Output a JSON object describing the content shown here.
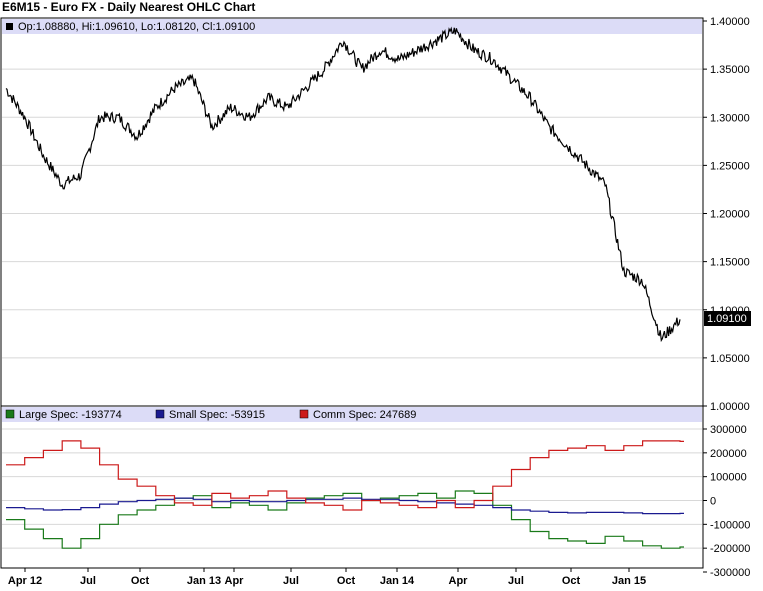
{
  "title": "E6M15 - Euro FX - Daily Nearest OHLC Chart",
  "price_panel": {
    "ohlc_label": "Op:1.08880, Hi:1.09610, Lo:1.08120, Cl:1.09100",
    "last_value_label": "1.09100",
    "ticks": [
      "1.40000",
      "1.35000",
      "1.30000",
      "1.25000",
      "1.20000",
      "1.15000",
      "1.10000",
      "1.05000",
      "1.00000"
    ]
  },
  "cot_panel": {
    "legend": [
      {
        "label": "Large Spec: -193774",
        "color": "#1a7a1a"
      },
      {
        "label": "Small Spec: -53915",
        "color": "#1a1a90"
      },
      {
        "label": "Comm Spec: 247689",
        "color": "#cc1a1a"
      }
    ],
    "ticks": [
      "300000",
      "200000",
      "100000",
      "0",
      "-100000",
      "-200000",
      "-300000"
    ]
  },
  "x_labels": [
    "Apr 12",
    "Jul",
    "Oct",
    "Jan 13",
    "Apr",
    "Jul",
    "Oct",
    "Jan 14",
    "Apr",
    "Jul",
    "Oct",
    "Jan 15"
  ],
  "colors": {
    "band": "#dcdcf7",
    "grid": "#d8d8d8",
    "price": "#000000",
    "last_box": "#000000"
  },
  "chart_data": [
    {
      "type": "line",
      "title": "E6M15 - Euro FX - Daily Nearest OHLC Chart",
      "x": [
        "2012-04",
        "2012-05",
        "2012-06",
        "2012-07",
        "2012-08",
        "2012-09",
        "2012-10",
        "2012-11",
        "2012-12",
        "2013-01",
        "2013-02",
        "2013-03",
        "2013-04",
        "2013-05",
        "2013-06",
        "2013-07",
        "2013-08",
        "2013-09",
        "2013-10",
        "2013-11",
        "2013-12",
        "2014-01",
        "2014-02",
        "2014-03",
        "2014-04",
        "2014-05",
        "2014-06",
        "2014-07",
        "2014-08",
        "2014-09",
        "2014-10",
        "2014-11",
        "2014-12",
        "2015-01",
        "2015-02",
        "2015-03",
        "2015-04"
      ],
      "series": [
        {
          "name": "Close",
          "values": [
            1.33,
            1.3,
            1.26,
            1.23,
            1.24,
            1.3,
            1.3,
            1.28,
            1.31,
            1.33,
            1.34,
            1.29,
            1.31,
            1.3,
            1.32,
            1.31,
            1.33,
            1.35,
            1.38,
            1.35,
            1.37,
            1.36,
            1.37,
            1.38,
            1.39,
            1.37,
            1.36,
            1.34,
            1.32,
            1.29,
            1.27,
            1.25,
            1.23,
            1.14,
            1.13,
            1.07,
            1.09
          ]
        }
      ],
      "ylim": [
        1.0,
        1.4
      ]
    },
    {
      "type": "line",
      "x": [
        "2012-04",
        "2012-05",
        "2012-06",
        "2012-07",
        "2012-08",
        "2012-09",
        "2012-10",
        "2012-11",
        "2012-12",
        "2013-01",
        "2013-02",
        "2013-03",
        "2013-04",
        "2013-05",
        "2013-06",
        "2013-07",
        "2013-08",
        "2013-09",
        "2013-10",
        "2013-11",
        "2013-12",
        "2014-01",
        "2014-02",
        "2014-03",
        "2014-04",
        "2014-05",
        "2014-06",
        "2014-07",
        "2014-08",
        "2014-09",
        "2014-10",
        "2014-11",
        "2014-12",
        "2015-01",
        "2015-02",
        "2015-03",
        "2015-04"
      ],
      "series": [
        {
          "name": "Large Spec",
          "values": [
            -80000,
            -120000,
            -160000,
            -200000,
            -160000,
            -100000,
            -60000,
            -40000,
            -20000,
            10000,
            20000,
            -30000,
            -10000,
            -20000,
            -40000,
            -10000,
            10000,
            20000,
            30000,
            0,
            10000,
            20000,
            30000,
            10000,
            40000,
            30000,
            -20000,
            -80000,
            -130000,
            -160000,
            -170000,
            -180000,
            -150000,
            -170000,
            -190000,
            -200000,
            -195000
          ]
        },
        {
          "name": "Small Spec",
          "values": [
            -30000,
            -35000,
            -40000,
            -38000,
            -30000,
            -15000,
            -5000,
            0,
            5000,
            10000,
            5000,
            -5000,
            0,
            -5000,
            -5000,
            0,
            5000,
            5000,
            10000,
            5000,
            5000,
            0,
            -5000,
            -10000,
            -15000,
            -20000,
            -30000,
            -40000,
            -45000,
            -50000,
            -52000,
            -50000,
            -50000,
            -52000,
            -55000,
            -55000,
            -54000
          ]
        },
        {
          "name": "Comm Spec",
          "values": [
            150000,
            180000,
            210000,
            250000,
            220000,
            150000,
            90000,
            60000,
            20000,
            -10000,
            -20000,
            30000,
            10000,
            20000,
            40000,
            10000,
            -10000,
            -20000,
            -40000,
            0,
            -10000,
            -20000,
            -30000,
            0,
            -30000,
            0,
            60000,
            130000,
            180000,
            210000,
            220000,
            230000,
            210000,
            230000,
            250000,
            250000,
            248000
          ]
        }
      ],
      "ylim": [
        -300000,
        300000
      ]
    }
  ]
}
